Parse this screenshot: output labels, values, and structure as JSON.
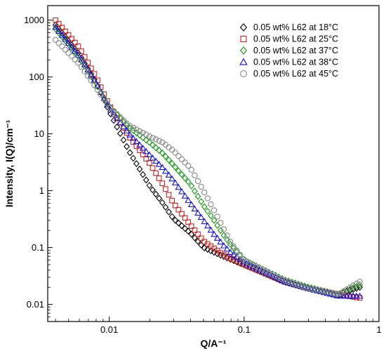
{
  "chart_data": {
    "type": "scatter",
    "title": "",
    "xlabel": "Q/A⁻¹",
    "ylabel": "Intensity, I(Q)/cm⁻¹",
    "xscale": "log",
    "yscale": "log",
    "xlim": [
      0.0035,
      1
    ],
    "ylim": [
      0.005,
      1800
    ],
    "x_ticks": [
      0.01,
      0.1,
      1
    ],
    "x_tick_labels": [
      "0.01",
      "0.1",
      "1"
    ],
    "y_ticks": [
      0.01,
      0.1,
      1,
      10,
      100,
      1000
    ],
    "y_tick_labels": [
      "0.01",
      "0.1",
      "1",
      "10",
      "100",
      "1000"
    ],
    "grid": false,
    "legend_position": "top-right",
    "series": [
      {
        "name": "0.05 wt% L62 at 18°C",
        "marker": "diamond",
        "color": "#000000",
        "keypoints": [
          [
            0.004,
            820
          ],
          [
            0.006,
            250
          ],
          [
            0.008,
            80
          ],
          [
            0.01,
            25
          ],
          [
            0.014,
            5
          ],
          [
            0.02,
            1.2
          ],
          [
            0.025,
            0.6
          ],
          [
            0.03,
            0.32
          ],
          [
            0.04,
            0.18
          ],
          [
            0.05,
            0.1
          ],
          [
            0.07,
            0.07
          ],
          [
            0.1,
            0.05
          ],
          [
            0.2,
            0.025
          ],
          [
            0.3,
            0.019
          ],
          [
            0.5,
            0.015
          ],
          [
            0.72,
            0.02
          ]
        ]
      },
      {
        "name": "0.05 wt% L62 at 25°C",
        "marker": "square",
        "color": "#cc2222",
        "keypoints": [
          [
            0.004,
            1000
          ],
          [
            0.006,
            330
          ],
          [
            0.008,
            100
          ],
          [
            0.01,
            32
          ],
          [
            0.014,
            9
          ],
          [
            0.02,
            3
          ],
          [
            0.025,
            1.3
          ],
          [
            0.03,
            0.6
          ],
          [
            0.04,
            0.25
          ],
          [
            0.05,
            0.13
          ],
          [
            0.07,
            0.075
          ],
          [
            0.1,
            0.05
          ],
          [
            0.2,
            0.025
          ],
          [
            0.3,
            0.019
          ],
          [
            0.5,
            0.015
          ],
          [
            0.72,
            0.013
          ]
        ]
      },
      {
        "name": "0.05 wt% L62 at 37°C",
        "marker": "diamond",
        "color": "#119911",
        "keypoints": [
          [
            0.004,
            700
          ],
          [
            0.006,
            220
          ],
          [
            0.008,
            75
          ],
          [
            0.01,
            30
          ],
          [
            0.014,
            13
          ],
          [
            0.02,
            7
          ],
          [
            0.025,
            4.5
          ],
          [
            0.03,
            2.8
          ],
          [
            0.04,
            1.3
          ],
          [
            0.05,
            0.55
          ],
          [
            0.06,
            0.3
          ],
          [
            0.07,
            0.17
          ],
          [
            0.08,
            0.11
          ],
          [
            0.1,
            0.06
          ],
          [
            0.2,
            0.027
          ],
          [
            0.3,
            0.02
          ],
          [
            0.5,
            0.015
          ],
          [
            0.72,
            0.022
          ]
        ]
      },
      {
        "name": "0.05 wt% L62 at 38°C",
        "marker": "triangle",
        "color": "#1111dd",
        "keypoints": [
          [
            0.004,
            750
          ],
          [
            0.006,
            230
          ],
          [
            0.008,
            78
          ],
          [
            0.01,
            28
          ],
          [
            0.014,
            10
          ],
          [
            0.02,
            4.2
          ],
          [
            0.025,
            2.5
          ],
          [
            0.03,
            1.5
          ],
          [
            0.04,
            0.6
          ],
          [
            0.05,
            0.3
          ],
          [
            0.06,
            0.17
          ],
          [
            0.07,
            0.11
          ],
          [
            0.08,
            0.08
          ],
          [
            0.1,
            0.055
          ],
          [
            0.2,
            0.025
          ],
          [
            0.3,
            0.019
          ],
          [
            0.5,
            0.014
          ],
          [
            0.72,
            0.014
          ]
        ]
      },
      {
        "name": "0.05 wt% L62 at 45°C",
        "marker": "circle",
        "color": "#888888",
        "keypoints": [
          [
            0.004,
            450
          ],
          [
            0.006,
            170
          ],
          [
            0.008,
            65
          ],
          [
            0.01,
            30
          ],
          [
            0.014,
            14
          ],
          [
            0.02,
            9
          ],
          [
            0.025,
            7
          ],
          [
            0.03,
            5
          ],
          [
            0.04,
            2.5
          ],
          [
            0.05,
            1
          ],
          [
            0.06,
            0.45
          ],
          [
            0.07,
            0.22
          ],
          [
            0.08,
            0.12
          ],
          [
            0.1,
            0.06
          ],
          [
            0.2,
            0.026
          ],
          [
            0.3,
            0.019
          ],
          [
            0.5,
            0.015
          ],
          [
            0.72,
            0.025
          ]
        ]
      }
    ]
  }
}
